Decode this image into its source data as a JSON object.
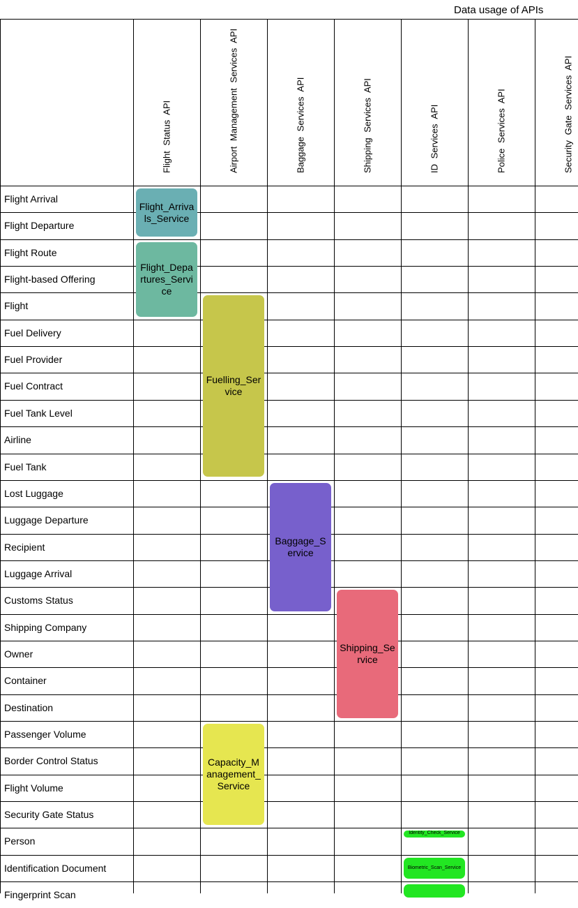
{
  "title": "Data usage of APIs",
  "columns": [
    "Flight  Status  API",
    "Airport  Management  Services  API",
    "Baggage  Services  API",
    "Shipping  Services  API",
    "ID  Services  API",
    "Police  Services  API",
    "Security  Gate  Services  API"
  ],
  "rows": [
    "Flight Arrival",
    "Flight Departure",
    "Flight Route",
    "Flight-based Offering",
    "Flight",
    "Fuel Delivery",
    "Fuel Provider",
    "Fuel Contract",
    "Fuel Tank Level",
    "Airline",
    "Fuel Tank",
    "Lost Luggage",
    "Luggage Departure",
    "Recipient",
    "Luggage Arrival",
    "Customs Status",
    "Shipping Company",
    "Owner",
    "Container",
    "Destination",
    "Passenger Volume",
    "Border Control Status",
    "Flight Volume",
    "Security Gate Status",
    "Person",
    "Identification Document",
    "Fingerprint Scan"
  ],
  "services": [
    {
      "label": "Flight_Arrivals_Service",
      "column": 0,
      "row_start": 0,
      "row_end": 1,
      "color": "#6aafb3"
    },
    {
      "label": "Flight_Departures_Service",
      "column": 0,
      "row_start": 2,
      "row_end": 4,
      "color": "#6db8a0"
    },
    {
      "label": "Fuelling_Service",
      "column": 1,
      "row_start": 4,
      "row_end": 10,
      "color": "#c6c64b"
    },
    {
      "label": "Baggage_Service",
      "column": 2,
      "row_start": 11,
      "row_end": 15,
      "color": "#7760cc"
    },
    {
      "label": "Shipping_Service",
      "column": 3,
      "row_start": 15,
      "row_end": 19,
      "color": "#e86a7a"
    },
    {
      "label": "Capacity_Management_Service",
      "column": 1,
      "row_start": 20,
      "row_end": 23,
      "color": "#e6e650"
    },
    {
      "label": "Identity_Check_Service",
      "column": 4,
      "row_start": 24,
      "row_end": 24,
      "color": "#22e622",
      "small": true,
      "partial": "top"
    },
    {
      "label": "Biometric_Scan_Service",
      "column": 4,
      "row_start": 25,
      "row_end": 25,
      "color": "#22e622",
      "small": true
    },
    {
      "label": "",
      "column": 4,
      "row_start": 26,
      "row_end": 26,
      "color": "#22e622",
      "small": true
    }
  ]
}
